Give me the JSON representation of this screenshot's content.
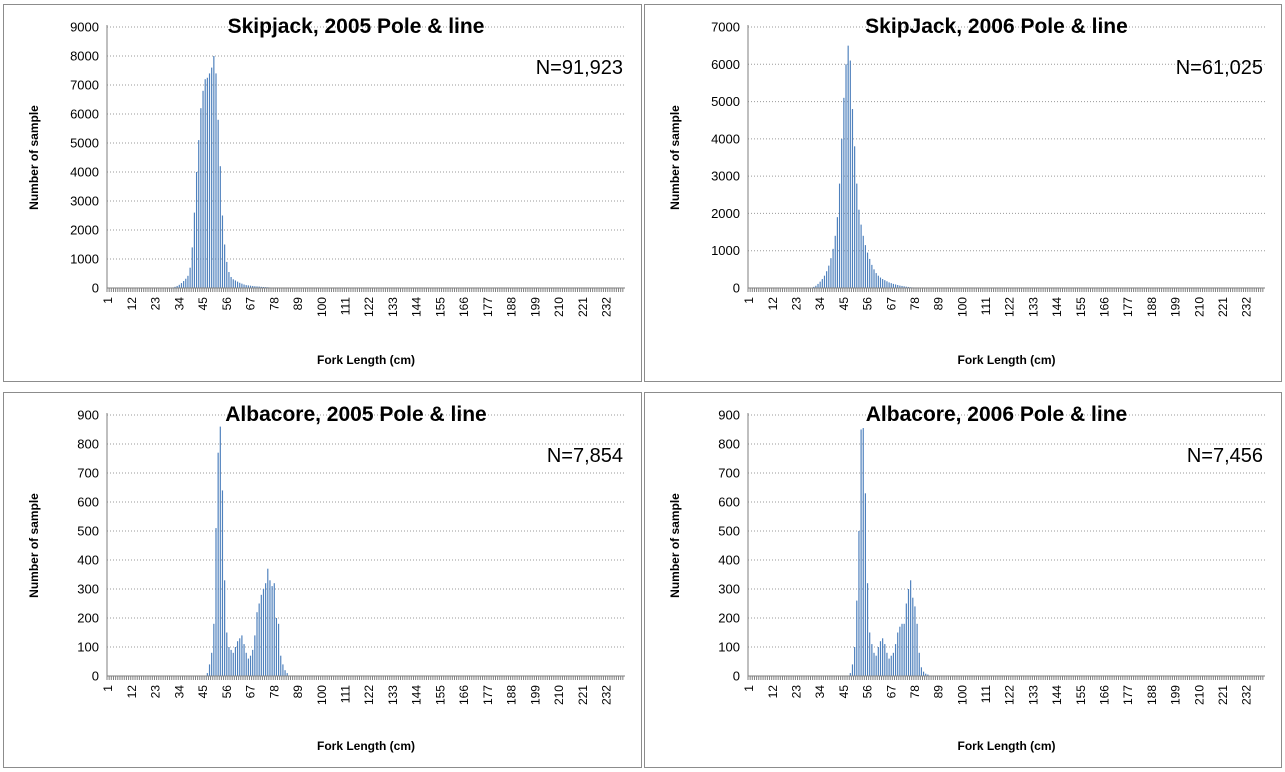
{
  "chart_data": [
    {
      "type": "bar",
      "title": "Skipjack, 2005 Pole & line",
      "annotation": "N=91,923",
      "xlabel": "Fork Length (cm)",
      "ylabel": "Number of sample",
      "x_tick_labels": [
        "1",
        "12",
        "23",
        "34",
        "45",
        "56",
        "67",
        "78",
        "89",
        "100",
        "111",
        "122",
        "133",
        "144",
        "155",
        "166",
        "177",
        "188",
        "199",
        "210",
        "221",
        "232"
      ],
      "ylim": [
        0,
        9000
      ],
      "y_ticks": [
        0,
        1000,
        2000,
        3000,
        4000,
        5000,
        6000,
        7000,
        8000,
        9000
      ],
      "x": [
        30,
        31,
        32,
        33,
        34,
        35,
        36,
        37,
        38,
        39,
        40,
        41,
        42,
        43,
        44,
        45,
        46,
        47,
        48,
        49,
        50,
        51,
        52,
        53,
        54,
        55,
        56,
        57,
        58,
        59,
        60,
        61,
        62,
        63,
        64,
        65,
        66,
        67,
        68,
        69,
        70,
        71,
        72,
        73,
        74,
        75,
        76,
        77,
        78,
        79,
        80
      ],
      "values": [
        10,
        20,
        40,
        70,
        110,
        170,
        240,
        320,
        420,
        700,
        1400,
        2600,
        4000,
        5100,
        6200,
        6800,
        7200,
        7250,
        7400,
        7600,
        8000,
        7400,
        5800,
        4200,
        2500,
        1500,
        900,
        550,
        380,
        300,
        260,
        220,
        180,
        150,
        120,
        100,
        90,
        80,
        70,
        60,
        55,
        50,
        40,
        35,
        30,
        25,
        20,
        15,
        10,
        8,
        5
      ],
      "grid": true,
      "legend": "none"
    },
    {
      "type": "bar",
      "title": "SkipJack, 2006 Pole & line",
      "annotation": "N=61,025",
      "xlabel": "Fork Length (cm)",
      "ylabel": "Number of sample",
      "x_tick_labels": [
        "1",
        "12",
        "23",
        "34",
        "45",
        "56",
        "67",
        "78",
        "89",
        "100",
        "111",
        "122",
        "133",
        "144",
        "155",
        "166",
        "177",
        "188",
        "199",
        "210",
        "221",
        "232"
      ],
      "ylim": [
        0,
        7000
      ],
      "y_ticks": [
        0,
        1000,
        2000,
        3000,
        4000,
        5000,
        6000,
        7000
      ],
      "x": [
        30,
        31,
        32,
        33,
        34,
        35,
        36,
        37,
        38,
        39,
        40,
        41,
        42,
        43,
        44,
        45,
        46,
        47,
        48,
        49,
        50,
        51,
        52,
        53,
        54,
        55,
        56,
        57,
        58,
        59,
        60,
        61,
        62,
        63,
        64,
        65,
        66,
        67,
        68,
        69,
        70,
        71,
        72,
        73,
        74,
        75,
        76,
        77,
        78,
        79,
        80,
        81,
        82
      ],
      "values": [
        10,
        30,
        60,
        110,
        170,
        240,
        330,
        450,
        600,
        800,
        1050,
        1400,
        1900,
        2800,
        4000,
        5100,
        6000,
        6500,
        6100,
        4800,
        3800,
        2800,
        2100,
        1700,
        1400,
        1150,
        950,
        780,
        620,
        500,
        400,
        330,
        280,
        240,
        210,
        180,
        150,
        130,
        110,
        95,
        80,
        65,
        55,
        45,
        35,
        28,
        20,
        15,
        10,
        8,
        5,
        3,
        2
      ],
      "grid": true,
      "legend": "none"
    },
    {
      "type": "bar",
      "title": "Albacore, 2005 Pole & line",
      "annotation": "N=7,854",
      "xlabel": "Fork Length (cm)",
      "ylabel": "Number of sample",
      "x_tick_labels": [
        "1",
        "12",
        "23",
        "34",
        "45",
        "56",
        "67",
        "78",
        "89",
        "100",
        "111",
        "122",
        "133",
        "144",
        "155",
        "166",
        "177",
        "188",
        "199",
        "210",
        "221",
        "232"
      ],
      "ylim": [
        0,
        900
      ],
      "y_ticks": [
        0,
        100,
        200,
        300,
        400,
        500,
        600,
        700,
        800,
        900
      ],
      "x": [
        47,
        48,
        49,
        50,
        51,
        52,
        53,
        54,
        55,
        56,
        57,
        58,
        59,
        60,
        61,
        62,
        63,
        64,
        65,
        66,
        67,
        68,
        69,
        70,
        71,
        72,
        73,
        74,
        75,
        76,
        77,
        78,
        79,
        80,
        81,
        82,
        83,
        84
      ],
      "values": [
        10,
        40,
        80,
        180,
        510,
        770,
        860,
        640,
        330,
        150,
        100,
        90,
        80,
        100,
        120,
        130,
        140,
        110,
        80,
        60,
        70,
        90,
        140,
        220,
        250,
        280,
        300,
        320,
        370,
        330,
        310,
        320,
        200,
        180,
        70,
        40,
        20,
        10
      ],
      "grid": true,
      "legend": "none"
    },
    {
      "type": "bar",
      "title": "Albacore, 2006 Pole & line",
      "annotation": "N=7,456",
      "xlabel": "Fork Length (cm)",
      "ylabel": "Number of sample",
      "x_tick_labels": [
        "1",
        "12",
        "23",
        "34",
        "45",
        "56",
        "67",
        "78",
        "89",
        "100",
        "111",
        "122",
        "133",
        "144",
        "155",
        "166",
        "177",
        "188",
        "199",
        "210",
        "221",
        "232"
      ],
      "ylim": [
        0,
        900
      ],
      "y_ticks": [
        0,
        100,
        200,
        300,
        400,
        500,
        600,
        700,
        800,
        900
      ],
      "x": [
        48,
        49,
        50,
        51,
        52,
        53,
        54,
        55,
        56,
        57,
        58,
        59,
        60,
        61,
        62,
        63,
        64,
        65,
        66,
        67,
        68,
        69,
        70,
        71,
        72,
        73,
        74,
        75,
        76,
        77,
        78,
        79,
        80,
        81,
        82,
        83,
        84
      ],
      "values": [
        10,
        40,
        100,
        260,
        500,
        850,
        855,
        630,
        320,
        150,
        110,
        80,
        70,
        100,
        120,
        130,
        110,
        80,
        60,
        70,
        80,
        110,
        150,
        170,
        180,
        180,
        250,
        300,
        330,
        270,
        240,
        180,
        80,
        30,
        15,
        8,
        5
      ],
      "grid": true,
      "legend": "none"
    }
  ]
}
